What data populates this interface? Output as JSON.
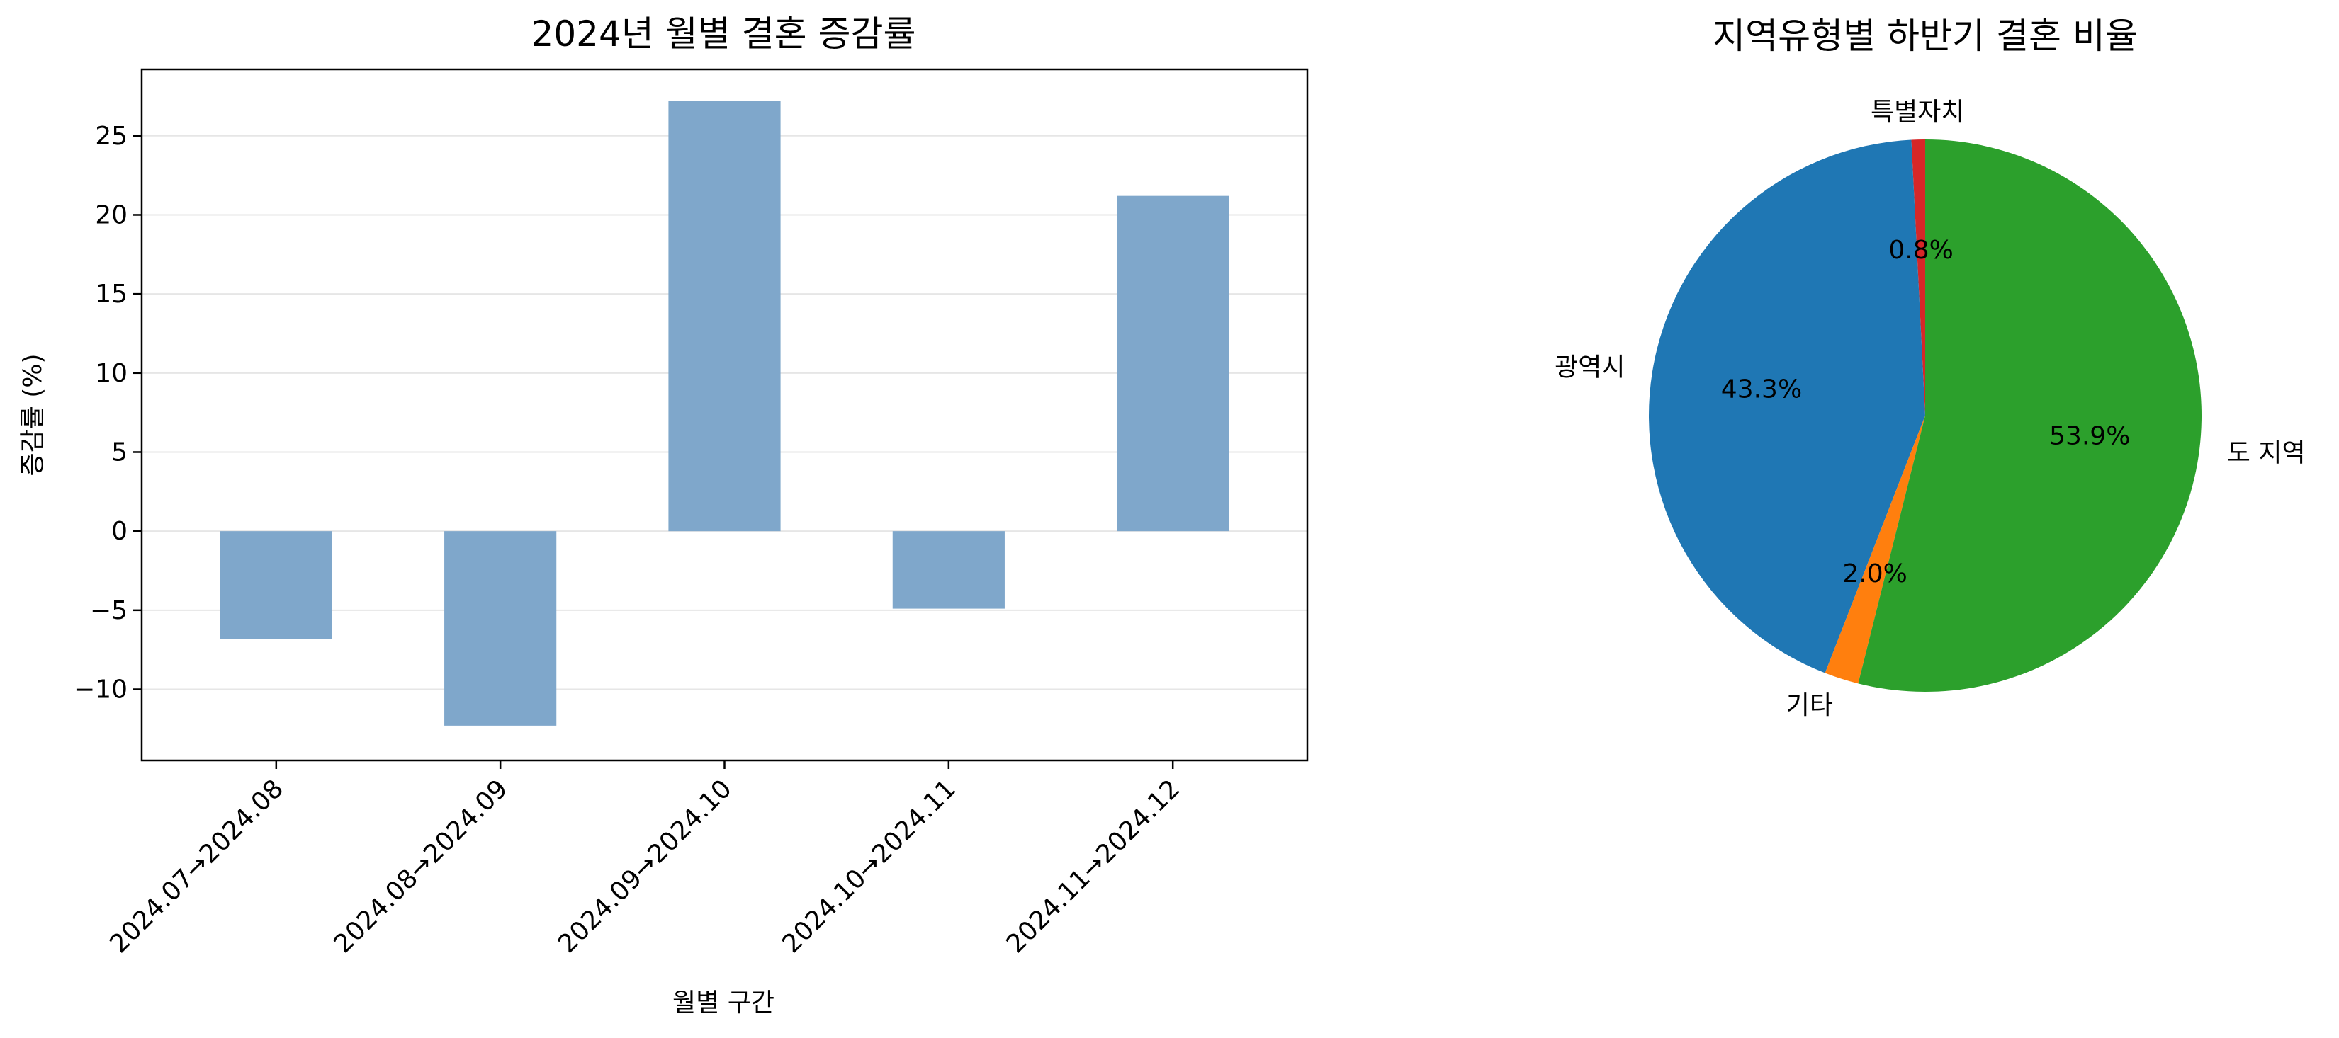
{
  "chart_data": [
    {
      "type": "bar",
      "title": "2024년 월별 결혼 증감률",
      "xlabel": "월별 구간",
      "ylabel": "증감률 (%)",
      "categories": [
        "2024.07→2024.08",
        "2024.08→2024.09",
        "2024.09→2024.10",
        "2024.10→2024.11",
        "2024.11→2024.12"
      ],
      "values": [
        -6.8,
        -12.3,
        27.2,
        -4.9,
        21.2
      ],
      "ylim": [
        -14.5,
        29.2
      ],
      "yticks": [
        -10,
        -5,
        0,
        5,
        10,
        15,
        20,
        25
      ],
      "ytick_labels": [
        "−10",
        "−5",
        "0",
        "5",
        "10",
        "15",
        "20",
        "25"
      ],
      "grid": "y",
      "bar_color": "#7fa7cb"
    },
    {
      "type": "pie",
      "title": "지역유형별 하반기 결혼 비율",
      "labels": [
        "특별자치",
        "광역시",
        "기타",
        "도 지역"
      ],
      "values": [
        0.8,
        43.3,
        2.0,
        53.9
      ],
      "pct_labels": [
        "0.8%",
        "43.3%",
        "2.0%",
        "53.9%"
      ],
      "colors": [
        "#d62728",
        "#1f77b4",
        "#ff7f0e",
        "#2ca02c"
      ],
      "start_angle": 90,
      "direction": "counterclockwise"
    }
  ]
}
